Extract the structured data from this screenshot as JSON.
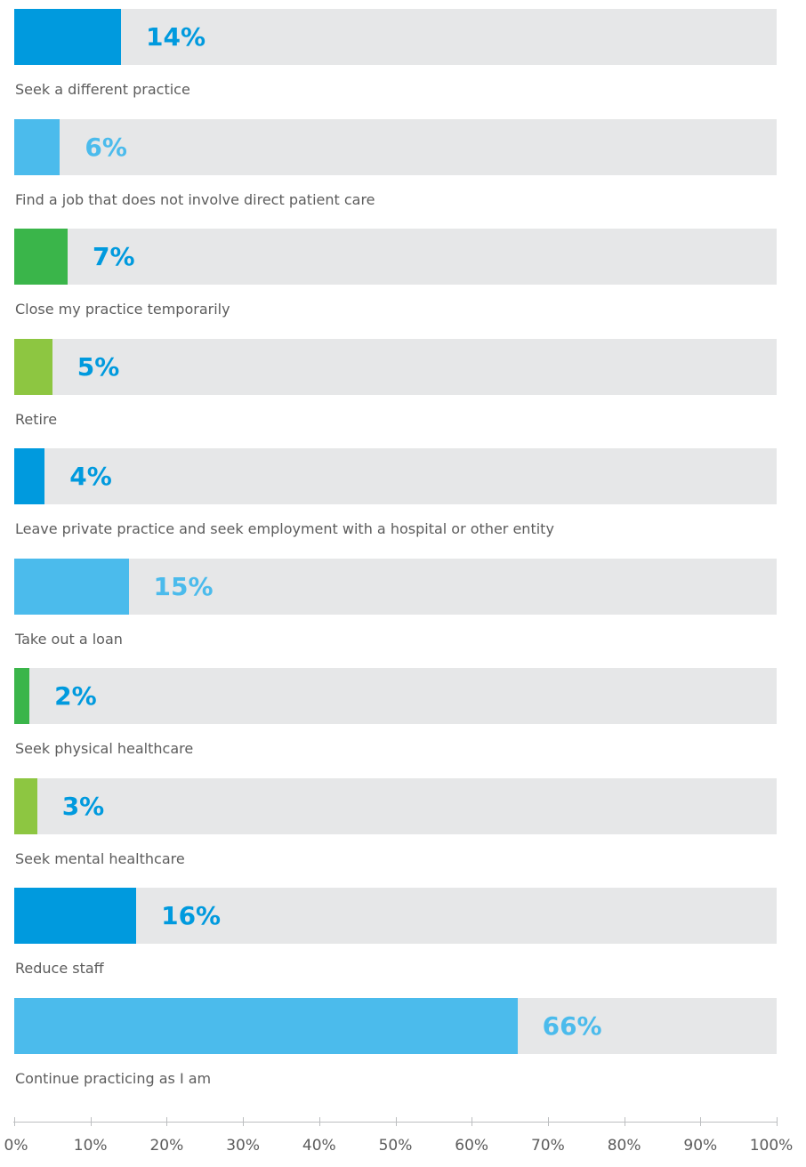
{
  "chart_data": {
    "type": "bar",
    "orientation": "horizontal",
    "categories": [
      "Seek a different practice",
      "Find a job that does not involve direct patient care",
      "Close my practice temporarily",
      "Retire",
      "Leave private practice and seek employment with a hospital or other entity",
      "Take out a loan",
      "Seek physical healthcare",
      "Seek mental healthcare",
      "Reduce staff",
      "Continue practicing as I am"
    ],
    "values": [
      14,
      6,
      7,
      5,
      4,
      15,
      2,
      3,
      16,
      66
    ],
    "value_labels": [
      "14%",
      "6%",
      "7%",
      "5%",
      "4%",
      "15%",
      "2%",
      "3%",
      "16%",
      "66%"
    ],
    "bar_colors": [
      "#009ade",
      "#4bbbec",
      "#3ab54a",
      "#8dc641",
      "#009ade",
      "#4bbbec",
      "#3ab54a",
      "#8dc641",
      "#009ade",
      "#4bbbec"
    ],
    "label_colors": [
      "#009ade",
      "#4bbbec",
      "#009ade",
      "#009ade",
      "#009ade",
      "#4bbbec",
      "#009ade",
      "#009ade",
      "#009ade",
      "#4bbbec"
    ],
    "track_color": "#e6e7e8",
    "xlim": [
      0,
      100
    ],
    "x_ticks": [
      "0%",
      "10%",
      "20%",
      "30%",
      "40%",
      "50%",
      "60%",
      "70%",
      "80%",
      "90%",
      "100%"
    ],
    "title": "",
    "xlabel": "",
    "ylabel": "",
    "grid": false,
    "legend": "none"
  }
}
